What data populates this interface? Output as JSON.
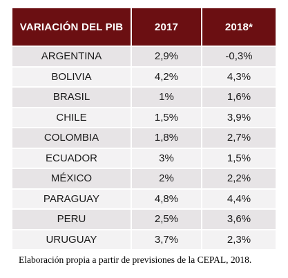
{
  "chart_data": {
    "type": "table",
    "columns": [
      "VARIACIÓN DEL PIB",
      "2017",
      "2018*"
    ],
    "rows": [
      [
        "ARGENTINA",
        "2,9%",
        "-0,3%"
      ],
      [
        "BOLIVIA",
        "4,2%",
        "4,3%"
      ],
      [
        "BRASIL",
        "1%",
        "1,6%"
      ],
      [
        "CHILE",
        "1,5%",
        "3,9%"
      ],
      [
        "COLOMBIA",
        "1,8%",
        "2,7%"
      ],
      [
        "ECUADOR",
        "3%",
        "1,5%"
      ],
      [
        "MÉXICO",
        "2%",
        "2,2%"
      ],
      [
        "PARAGUAY",
        "4,8%",
        "4,4%"
      ],
      [
        "PERU",
        "2,5%",
        "3,6%"
      ],
      [
        "URUGUAY",
        "3,7%",
        "2,3%"
      ]
    ]
  },
  "caption": "Elaboración propia a partir de previsiones de la CEPAL, 2018.",
  "colors": {
    "header_bg": "#6b0f12",
    "row_odd": "#e7e4e6",
    "row_even": "#f3f2f3"
  }
}
